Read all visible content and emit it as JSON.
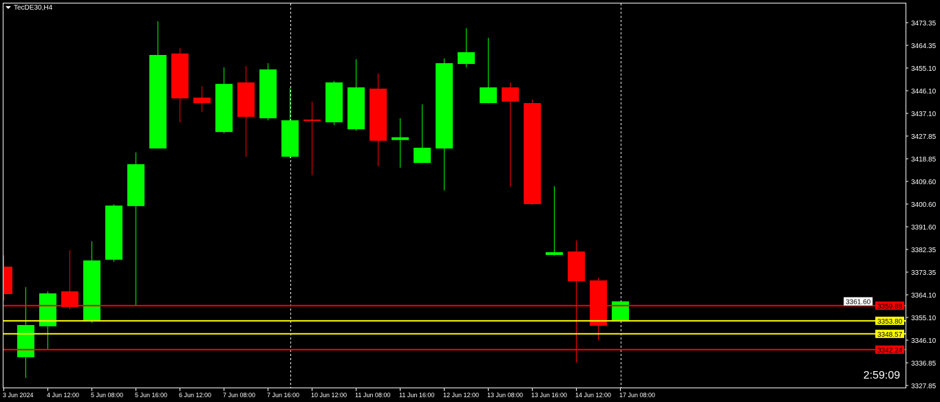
{
  "window": {
    "title": "TecDE30,H4",
    "countdown": "2:59:09"
  },
  "colors": {
    "background": "#000000",
    "bull": "#00ff00",
    "bear": "#ff0000",
    "axis": "#ffffff",
    "support_resistance_red": "#ff0000",
    "support_resistance_yellow": "#ffff00"
  },
  "chart_data": {
    "type": "candlestick",
    "symbol": "TecDE30",
    "timeframe": "H4",
    "ylim": [
      3327.85,
      3473.35
    ],
    "y_ticks": [
      "3473.35",
      "3464.35",
      "3455.10",
      "3446.10",
      "3437.10",
      "3427.85",
      "3418.85",
      "3409.60",
      "3400.60",
      "3391.60",
      "3382.35",
      "3373.35",
      "3364.10",
      "3355.10",
      "3346.10",
      "3336.85",
      "3327.85"
    ],
    "x_tick_labels": [
      "3 Jun 2024",
      "4 Jun 12:00",
      "5 Jun 08:00",
      "5 Jun 16:00",
      "6 Jun 12:00",
      "7 Jun 08:00",
      "7 Jun 16:00",
      "10 Jun 12:00",
      "11 Jun 08:00",
      "11 Jun 16:00",
      "12 Jun 12:00",
      "13 Jun 08:00",
      "13 Jun 16:00",
      "14 Jun 12:00",
      "17 Jun 08:00"
    ],
    "candles": [
      {
        "o": 3375.5,
        "h": 3380.0,
        "l": 3362.0,
        "c": 3364.5
      },
      {
        "o": 3339.2,
        "h": 3367.3,
        "l": 3330.9,
        "c": 3352.1
      },
      {
        "o": 3351.6,
        "h": 3365.6,
        "l": 3342.5,
        "c": 3364.8
      },
      {
        "o": 3365.6,
        "h": 3382.1,
        "l": 3358.4,
        "c": 3359.3
      },
      {
        "o": 3353.7,
        "h": 3385.7,
        "l": 3353.0,
        "c": 3378.0
      },
      {
        "o": 3378.3,
        "h": 3400.5,
        "l": 3377.5,
        "c": 3400.0
      },
      {
        "o": 3399.8,
        "h": 3421.3,
        "l": 3360.1,
        "c": 3416.6
      },
      {
        "o": 3422.9,
        "h": 3473.9,
        "l": 3422.9,
        "c": 3460.4
      },
      {
        "o": 3461.0,
        "h": 3463.2,
        "l": 3433.4,
        "c": 3443.0
      },
      {
        "o": 3443.3,
        "h": 3447.9,
        "l": 3437.5,
        "c": 3441.1
      },
      {
        "o": 3429.5,
        "h": 3455.4,
        "l": 3429.0,
        "c": 3448.8
      },
      {
        "o": 3449.4,
        "h": 3456.0,
        "l": 3419.6,
        "c": 3435.6
      },
      {
        "o": 3435.0,
        "h": 3457.1,
        "l": 3434.2,
        "c": 3454.6
      },
      {
        "o": 3419.6,
        "h": 3447.2,
        "l": 3419.0,
        "c": 3434.2
      },
      {
        "o": 3434.5,
        "h": 3441.7,
        "l": 3412.2,
        "c": 3434.2
      },
      {
        "o": 3433.4,
        "h": 3450.0,
        "l": 3432.3,
        "c": 3449.4
      },
      {
        "o": 3430.6,
        "h": 3458.7,
        "l": 3430.0,
        "c": 3447.4
      },
      {
        "o": 3446.9,
        "h": 3453.0,
        "l": 3415.8,
        "c": 3426.0
      },
      {
        "o": 3426.3,
        "h": 3435.0,
        "l": 3415.2,
        "c": 3427.4
      },
      {
        "o": 3417.1,
        "h": 3440.6,
        "l": 3417.0,
        "c": 3423.2
      },
      {
        "o": 3422.9,
        "h": 3459.0,
        "l": 3406.1,
        "c": 3457.1
      },
      {
        "o": 3456.8,
        "h": 3471.1,
        "l": 3455.4,
        "c": 3461.5
      },
      {
        "o": 3441.1,
        "h": 3467.3,
        "l": 3441.0,
        "c": 3447.4
      },
      {
        "o": 3447.4,
        "h": 3449.4,
        "l": 3407.5,
        "c": 3441.7
      },
      {
        "o": 3441.1,
        "h": 3442.5,
        "l": 3400.3,
        "c": 3400.6
      },
      {
        "o": 3380.2,
        "h": 3407.8,
        "l": 3380.0,
        "c": 3381.3
      },
      {
        "o": 3381.6,
        "h": 3386.0,
        "l": 3337.0,
        "c": 3369.7
      },
      {
        "o": 3370.0,
        "h": 3371.1,
        "l": 3346.0,
        "c": 3351.8
      },
      {
        "o": 3354.0,
        "h": 3361.6,
        "l": 3353.8,
        "c": 3361.6
      }
    ],
    "current_price": "3361.60",
    "horizontal_lines": [
      {
        "price": 3359.88,
        "label": "3359.88",
        "color": "#ff0000"
      },
      {
        "price": 3353.8,
        "label": "3353.80",
        "color": "#ffff00"
      },
      {
        "price": 3348.57,
        "label": "3348.57",
        "color": "#ffff00"
      },
      {
        "price": 3342.24,
        "label": "3342.24",
        "color": "#ff0000"
      }
    ],
    "period_separators": [
      "7 Jun 16:00",
      "17 Jun 08:00"
    ],
    "grid": false
  }
}
